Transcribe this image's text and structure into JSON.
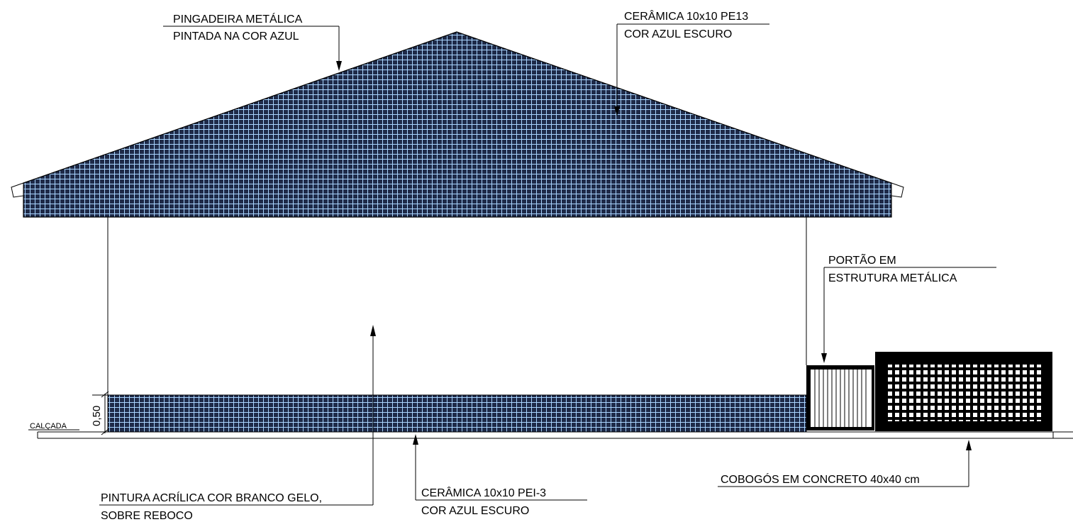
{
  "colors": {
    "tile_fill": "#1e2a48",
    "tile_grout": "#a9d4ff",
    "line": "#000000"
  },
  "labels": {
    "gutter_line1": "PINGADEIRA METÁLICA",
    "gutter_line2": "PINTADA NA COR AZUL",
    "gable_tile_line1": "CERÂMICA 10x10 PE13",
    "gable_tile_line2": "COR AZUL ESCURO",
    "gate_line1": "PORTÃO EM",
    "gate_line2": "ESTRUTURA METÁLICA",
    "paint_line1": "PINTURA ACRÍLICA COR BRANCO GELO,",
    "paint_line2": "SOBRE REBOCO",
    "base_tile_line1": "CERÂMICA 10x10 PEI-3",
    "base_tile_line2": "COR AZUL ESCURO",
    "cobogo": "COBOGÓS EM CONCRETO 40x40 cm",
    "sidewalk": "CALÇADA",
    "dimension": "0,50"
  }
}
